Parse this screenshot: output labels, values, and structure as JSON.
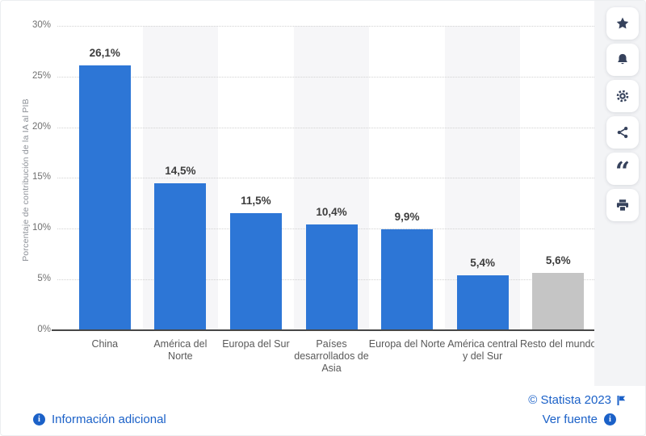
{
  "chart_data": {
    "type": "bar",
    "title": "",
    "ylabel": "Porcentaje de contribución de la IA al PIB",
    "xlabel": "",
    "categories": [
      "China",
      "América del Norte",
      "Europa del Sur",
      "Países desarrollados de Asia",
      "Europa del Norte",
      "América central y del Sur",
      "Resto del mundo"
    ],
    "values": [
      26.1,
      14.5,
      11.5,
      10.4,
      9.9,
      5.4,
      5.6
    ],
    "value_labels": [
      "26,1%",
      "14,5%",
      "11,5%",
      "10,4%",
      "9,9%",
      "5,4%",
      "5,6%"
    ],
    "bar_colors": [
      "#2d76d6",
      "#2d76d6",
      "#2d76d6",
      "#2d76d6",
      "#2d76d6",
      "#2d76d6",
      "#c5c5c5"
    ],
    "ylim": [
      0,
      30
    ],
    "yticks": [
      0,
      5,
      10,
      15,
      20,
      25,
      30
    ],
    "ytick_labels": [
      "0%",
      "5%",
      "10%",
      "15%",
      "20%",
      "25%",
      "30%"
    ],
    "grid": "horizontal-dotted",
    "plot_background": "alternating column stripes",
    "legend": "none"
  },
  "toolbar": {
    "buttons": [
      {
        "name": "favorite",
        "icon": "star-icon"
      },
      {
        "name": "notifications",
        "icon": "bell-icon"
      },
      {
        "name": "settings",
        "icon": "gear-icon"
      },
      {
        "name": "share",
        "icon": "share-icon"
      },
      {
        "name": "cite",
        "icon": "quote-icon"
      },
      {
        "name": "print",
        "icon": "printer-icon"
      }
    ]
  },
  "footer": {
    "additional_info_label": "Información adicional",
    "copyright": "© Statista 2023",
    "source_label": "Ver fuente"
  },
  "colors": {
    "bar_blue": "#2d76d6",
    "bar_gray": "#c5c5c5",
    "link_blue": "#1b61c8",
    "icon_navy": "#36425c",
    "stripe": "#f6f6f8",
    "panel": "#f3f4f6"
  }
}
